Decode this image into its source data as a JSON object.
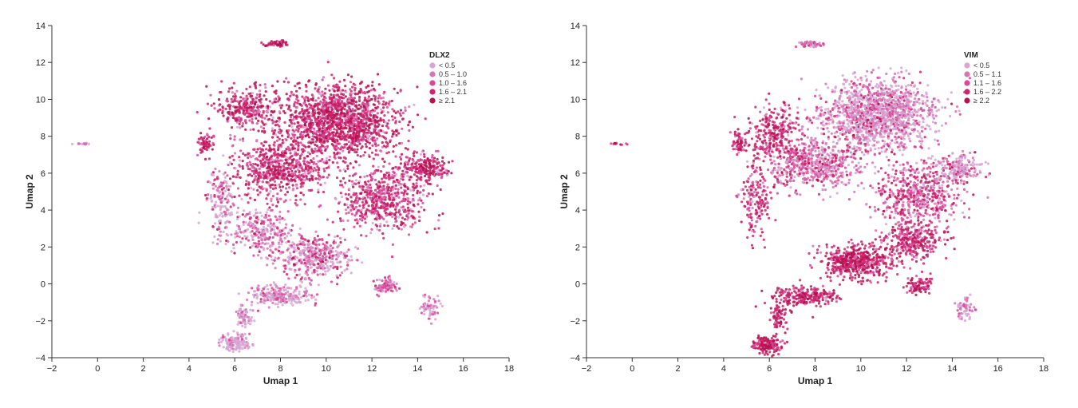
{
  "chart_data": [
    {
      "type": "scatter",
      "xlabel": "Umap 1",
      "ylabel": "Umap 2",
      "xlim": [
        -2,
        18
      ],
      "ylim": [
        -4,
        14
      ],
      "xticks": [
        "−2",
        "0",
        "2",
        "4",
        "6",
        "8",
        "10",
        "12",
        "14",
        "16",
        "18"
      ],
      "yticks": [
        "−4",
        "−2",
        "0",
        "2",
        "4",
        "6",
        "8",
        "10",
        "12",
        "14"
      ],
      "legend": {
        "title": "DLX2",
        "placement": "top-right",
        "entries": [
          "< 0.5",
          "0.5 – 1.0",
          "1.0 – 1.6",
          "1.6 – 2.1",
          "≥ 2.1"
        ],
        "colors": [
          "#d7a6d3",
          "#d675b5",
          "#d9479a",
          "#cf2470",
          "#b5124f"
        ]
      },
      "regions": [
        {
          "x": 10.5,
          "y": 8.8,
          "sx": 2.3,
          "sy": 1.8,
          "n": 1500,
          "levels": [
            0.04,
            0.08,
            0.16,
            0.3,
            0.42
          ]
        },
        {
          "x": 8.0,
          "y": 6.2,
          "sx": 2.0,
          "sy": 1.4,
          "n": 650,
          "levels": [
            0.05,
            0.1,
            0.2,
            0.35,
            0.3
          ]
        },
        {
          "x": 12.5,
          "y": 4.5,
          "sx": 1.7,
          "sy": 1.6,
          "n": 600,
          "levels": [
            0.1,
            0.15,
            0.25,
            0.3,
            0.2
          ]
        },
        {
          "x": 14.3,
          "y": 6.3,
          "sx": 0.9,
          "sy": 0.7,
          "n": 220,
          "levels": [
            0.03,
            0.07,
            0.2,
            0.3,
            0.4
          ]
        },
        {
          "x": 6.5,
          "y": 9.5,
          "sx": 1.3,
          "sy": 1.0,
          "n": 300,
          "levels": [
            0.05,
            0.1,
            0.2,
            0.3,
            0.35
          ]
        },
        {
          "x": 9.5,
          "y": 1.5,
          "sx": 1.5,
          "sy": 1.0,
          "n": 420,
          "levels": [
            0.45,
            0.25,
            0.15,
            0.1,
            0.05
          ]
        },
        {
          "x": 7.2,
          "y": 2.8,
          "sx": 1.2,
          "sy": 1.1,
          "n": 260,
          "levels": [
            0.4,
            0.25,
            0.2,
            0.1,
            0.05
          ]
        },
        {
          "x": 8.0,
          "y": -0.6,
          "sx": 1.3,
          "sy": 0.5,
          "n": 230,
          "levels": [
            0.6,
            0.25,
            0.1,
            0.05,
            0.0
          ]
        },
        {
          "x": 5.4,
          "y": 4.5,
          "sx": 0.6,
          "sy": 1.8,
          "n": 160,
          "levels": [
            0.55,
            0.25,
            0.1,
            0.05,
            0.05
          ]
        },
        {
          "x": 6.0,
          "y": -3.2,
          "sx": 0.6,
          "sy": 0.4,
          "n": 140,
          "levels": [
            0.75,
            0.2,
            0.05,
            0.0,
            0.0
          ]
        },
        {
          "x": 6.4,
          "y": -1.8,
          "sx": 0.3,
          "sy": 0.7,
          "n": 70,
          "levels": [
            0.7,
            0.2,
            0.1,
            0.0,
            0.0
          ]
        },
        {
          "x": 12.6,
          "y": -0.1,
          "sx": 0.5,
          "sy": 0.4,
          "n": 90,
          "levels": [
            0.2,
            0.3,
            0.3,
            0.15,
            0.05
          ]
        },
        {
          "x": 14.6,
          "y": -1.3,
          "sx": 0.4,
          "sy": 0.6,
          "n": 60,
          "levels": [
            0.5,
            0.3,
            0.2,
            0.0,
            0.0
          ]
        },
        {
          "x": 7.8,
          "y": 13.0,
          "sx": 0.5,
          "sy": 0.15,
          "n": 60,
          "levels": [
            0.0,
            0.05,
            0.15,
            0.3,
            0.5
          ]
        },
        {
          "x": 4.7,
          "y": 7.6,
          "sx": 0.3,
          "sy": 0.6,
          "n": 60,
          "levels": [
            0.0,
            0.05,
            0.15,
            0.35,
            0.45
          ]
        },
        {
          "x": -0.6,
          "y": 7.6,
          "sx": 0.4,
          "sy": 0.05,
          "n": 12,
          "levels": [
            0.5,
            0.3,
            0.2,
            0.0,
            0.0
          ]
        }
      ]
    },
    {
      "type": "scatter",
      "xlabel": "Umap 1",
      "ylabel": "Umap 2",
      "xlim": [
        -2,
        18
      ],
      "ylim": [
        -4,
        14
      ],
      "xticks": [
        "−2",
        "0",
        "2",
        "4",
        "6",
        "8",
        "10",
        "12",
        "14",
        "16",
        "18"
      ],
      "yticks": [
        "−4",
        "−2",
        "0",
        "2",
        "4",
        "6",
        "8",
        "10",
        "12",
        "14"
      ],
      "legend": {
        "title": "VIM",
        "placement": "top-right",
        "entries": [
          "< 0.5",
          "0.5 – 1.1",
          "1.1 – 1.6",
          "1.6 – 2.2",
          "≥ 2.2"
        ],
        "colors": [
          "#d7a6d3",
          "#d675b5",
          "#d9479a",
          "#cf2470",
          "#b5124f"
        ]
      },
      "regions": [
        {
          "x": 10.8,
          "y": 9.2,
          "sx": 2.2,
          "sy": 1.6,
          "n": 1400,
          "levels": [
            0.5,
            0.25,
            0.13,
            0.08,
            0.04
          ]
        },
        {
          "x": 8.0,
          "y": 6.5,
          "sx": 2.0,
          "sy": 1.3,
          "n": 600,
          "levels": [
            0.25,
            0.3,
            0.25,
            0.12,
            0.08
          ]
        },
        {
          "x": 12.5,
          "y": 4.8,
          "sx": 1.7,
          "sy": 1.5,
          "n": 550,
          "levels": [
            0.15,
            0.2,
            0.25,
            0.25,
            0.15
          ]
        },
        {
          "x": 14.3,
          "y": 6.3,
          "sx": 0.9,
          "sy": 0.7,
          "n": 200,
          "levels": [
            0.55,
            0.25,
            0.1,
            0.05,
            0.05
          ]
        },
        {
          "x": 6.2,
          "y": 8.0,
          "sx": 1.1,
          "sy": 1.4,
          "n": 300,
          "levels": [
            0.05,
            0.1,
            0.2,
            0.3,
            0.35
          ]
        },
        {
          "x": 9.8,
          "y": 1.2,
          "sx": 1.4,
          "sy": 0.9,
          "n": 520,
          "levels": [
            0.0,
            0.05,
            0.15,
            0.35,
            0.45
          ]
        },
        {
          "x": 12.3,
          "y": 2.2,
          "sx": 1.2,
          "sy": 0.9,
          "n": 300,
          "levels": [
            0.05,
            0.1,
            0.2,
            0.35,
            0.3
          ]
        },
        {
          "x": 7.6,
          "y": -0.7,
          "sx": 1.3,
          "sy": 0.5,
          "n": 250,
          "levels": [
            0.0,
            0.05,
            0.15,
            0.35,
            0.45
          ]
        },
        {
          "x": 5.4,
          "y": 4.5,
          "sx": 0.6,
          "sy": 1.8,
          "n": 160,
          "levels": [
            0.05,
            0.1,
            0.2,
            0.3,
            0.35
          ]
        },
        {
          "x": 5.9,
          "y": -3.3,
          "sx": 0.6,
          "sy": 0.4,
          "n": 150,
          "levels": [
            0.0,
            0.0,
            0.1,
            0.35,
            0.55
          ]
        },
        {
          "x": 6.4,
          "y": -1.8,
          "sx": 0.3,
          "sy": 0.7,
          "n": 70,
          "levels": [
            0.0,
            0.05,
            0.15,
            0.35,
            0.45
          ]
        },
        {
          "x": 12.6,
          "y": -0.1,
          "sx": 0.5,
          "sy": 0.4,
          "n": 90,
          "levels": [
            0.0,
            0.05,
            0.15,
            0.35,
            0.45
          ]
        },
        {
          "x": 14.6,
          "y": -1.3,
          "sx": 0.4,
          "sy": 0.6,
          "n": 60,
          "levels": [
            0.6,
            0.3,
            0.1,
            0.0,
            0.0
          ]
        },
        {
          "x": 7.8,
          "y": 13.0,
          "sx": 0.5,
          "sy": 0.15,
          "n": 60,
          "levels": [
            0.3,
            0.35,
            0.25,
            0.1,
            0.0
          ]
        },
        {
          "x": 4.7,
          "y": 7.6,
          "sx": 0.3,
          "sy": 0.6,
          "n": 60,
          "levels": [
            0.0,
            0.05,
            0.15,
            0.35,
            0.45
          ]
        },
        {
          "x": -0.6,
          "y": 7.6,
          "sx": 0.4,
          "sy": 0.05,
          "n": 12,
          "levels": [
            0.0,
            0.1,
            0.2,
            0.3,
            0.4
          ]
        }
      ]
    }
  ]
}
